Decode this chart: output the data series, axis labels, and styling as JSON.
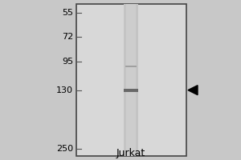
{
  "bg_outer": "#c8c8c8",
  "bg_panel": "#e0e0e0",
  "lane_color": "#bebebe",
  "band_130_color": "#787878",
  "band_130_light": "#d0d0d0",
  "band_95_color": "#a8a8a8",
  "title": "Jurkat",
  "markers": [
    250,
    130,
    95,
    72,
    55
  ],
  "marker_labels": [
    "250",
    "130",
    "95",
    "72",
    "55"
  ],
  "title_fontsize": 9,
  "marker_fontsize": 8,
  "fig_width": 3.0,
  "fig_height": 2.0,
  "dpi": 100
}
